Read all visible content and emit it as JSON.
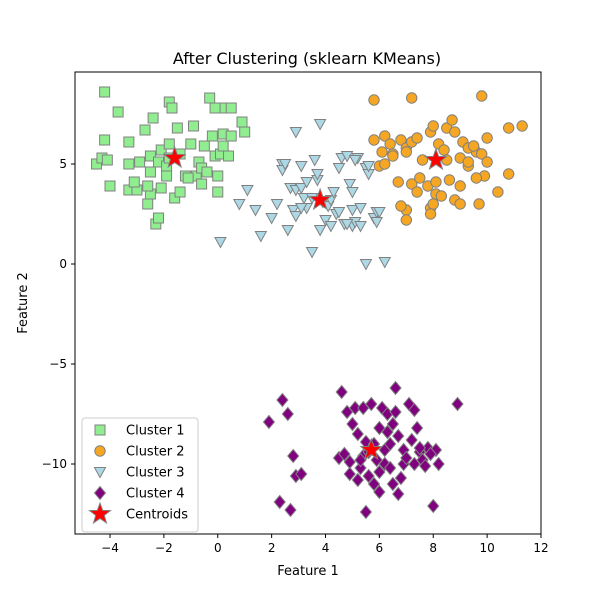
{
  "chart_data": {
    "type": "scatter",
    "title": "After Clustering (sklearn KMeans)",
    "xlabel": "Feature 1",
    "ylabel": "Feature 2",
    "xlim": [
      -5.3,
      12.0
    ],
    "ylim": [
      -13.5,
      9.6
    ],
    "xticks": [
      -4,
      -2,
      0,
      2,
      4,
      6,
      8,
      10,
      12
    ],
    "yticks": [
      -10,
      -5,
      0,
      5
    ],
    "ytick_labels": [
      "−10",
      "−5",
      "0",
      "5"
    ],
    "xtick_labels": [
      "−4",
      "−2",
      "0",
      "2",
      "4",
      "6",
      "8",
      "10",
      "12"
    ],
    "grid": false,
    "legend_position": "lower-left",
    "series": [
      {
        "name": "Cluster 1",
        "marker": "square",
        "color": "#90ee90",
        "edge": "#808080",
        "points": [
          [
            -4.2,
            8.6
          ],
          [
            -3.7,
            7.6
          ],
          [
            -4.2,
            6.2
          ],
          [
            -4.5,
            5.0
          ],
          [
            -4.3,
            5.3
          ],
          [
            -4.1,
            5.2
          ],
          [
            -4.0,
            3.9
          ],
          [
            -3.3,
            3.7
          ],
          [
            -3.0,
            3.7
          ],
          [
            -3.1,
            4.1
          ],
          [
            -3.3,
            5.0
          ],
          [
            -3.3,
            6.1
          ],
          [
            -2.9,
            5.1
          ],
          [
            -2.7,
            6.7
          ],
          [
            -2.6,
            3.0
          ],
          [
            -2.5,
            3.5
          ],
          [
            -2.6,
            3.9
          ],
          [
            -2.5,
            4.6
          ],
          [
            -2.5,
            5.4
          ],
          [
            -2.4,
            7.3
          ],
          [
            -2.3,
            2.0
          ],
          [
            -2.2,
            2.3
          ],
          [
            -2.1,
            3.8
          ],
          [
            -2.2,
            5.1
          ],
          [
            -2.1,
            5.7
          ],
          [
            -1.8,
            8.1
          ],
          [
            -1.7,
            7.8
          ],
          [
            -1.9,
            4.9
          ],
          [
            -1.8,
            5.3
          ],
          [
            -1.8,
            6.0
          ],
          [
            -1.6,
            3.3
          ],
          [
            -1.4,
            3.6
          ],
          [
            -1.5,
            6.8
          ],
          [
            -1.4,
            5.5
          ],
          [
            -1.2,
            4.4
          ],
          [
            -1.0,
            6.0
          ],
          [
            -0.9,
            6.9
          ],
          [
            -0.8,
            4.4
          ],
          [
            -0.7,
            5.1
          ],
          [
            -0.6,
            4.0
          ],
          [
            -0.6,
            4.8
          ],
          [
            -0.5,
            5.9
          ],
          [
            -0.4,
            4.6
          ],
          [
            -0.3,
            8.3
          ],
          [
            -0.2,
            6.4
          ],
          [
            -0.1,
            5.4
          ],
          [
            0.0,
            3.6
          ],
          [
            0.0,
            4.4
          ],
          [
            0.1,
            5.5
          ],
          [
            0.2,
            6.5
          ],
          [
            0.2,
            7.8
          ],
          [
            0.4,
            5.4
          ],
          [
            0.5,
            7.8
          ],
          [
            0.5,
            6.4
          ],
          [
            0.9,
            7.1
          ],
          [
            1.0,
            6.6
          ],
          [
            -0.1,
            7.8
          ],
          [
            0.2,
            5.9
          ],
          [
            -1.1,
            4.3
          ],
          [
            -1.9,
            4.4
          ]
        ]
      },
      {
        "name": "Cluster 2",
        "marker": "circle",
        "color": "#f5a623",
        "edge": "#808080",
        "points": [
          [
            5.8,
            8.2
          ],
          [
            7.2,
            8.3
          ],
          [
            9.8,
            8.4
          ],
          [
            5.8,
            6.2
          ],
          [
            6.2,
            6.4
          ],
          [
            6.4,
            6.0
          ],
          [
            6.5,
            5.5
          ],
          [
            6.8,
            6.2
          ],
          [
            7.0,
            5.8
          ],
          [
            7.2,
            6.1
          ],
          [
            7.4,
            6.3
          ],
          [
            7.6,
            5.2
          ],
          [
            7.9,
            6.6
          ],
          [
            8.0,
            6.9
          ],
          [
            8.2,
            6.0
          ],
          [
            8.4,
            5.7
          ],
          [
            8.5,
            6.8
          ],
          [
            8.7,
            7.2
          ],
          [
            8.8,
            6.6
          ],
          [
            9.0,
            5.3
          ],
          [
            9.1,
            6.1
          ],
          [
            9.3,
            4.9
          ],
          [
            9.6,
            5.6
          ],
          [
            9.8,
            5.5
          ],
          [
            9.9,
            4.4
          ],
          [
            10.0,
            6.3
          ],
          [
            10.0,
            5.1
          ],
          [
            10.4,
            3.6
          ],
          [
            10.8,
            4.5
          ],
          [
            10.8,
            6.8
          ],
          [
            11.3,
            6.9
          ],
          [
            6.0,
            4.9
          ],
          [
            6.1,
            5.6
          ],
          [
            6.2,
            5.0
          ],
          [
            6.5,
            5.4
          ],
          [
            6.7,
            4.1
          ],
          [
            7.0,
            5.6
          ],
          [
            7.2,
            4.0
          ],
          [
            7.4,
            3.6
          ],
          [
            7.5,
            4.3
          ],
          [
            7.8,
            3.9
          ],
          [
            7.9,
            2.8
          ],
          [
            8.0,
            3.0
          ],
          [
            8.1,
            3.5
          ],
          [
            8.3,
            3.4
          ],
          [
            8.5,
            5.2
          ],
          [
            8.6,
            4.2
          ],
          [
            8.8,
            3.2
          ],
          [
            9.0,
            3.0
          ],
          [
            9.0,
            3.9
          ],
          [
            9.3,
            5.8
          ],
          [
            9.5,
            5.9
          ],
          [
            9.6,
            4.3
          ],
          [
            9.7,
            3.0
          ],
          [
            7.0,
            2.7
          ],
          [
            6.8,
            2.9
          ],
          [
            7.0,
            2.2
          ],
          [
            7.9,
            2.5
          ],
          [
            8.1,
            4.1
          ],
          [
            9.3,
            5.1
          ]
        ]
      },
      {
        "name": "Cluster 3",
        "marker": "triangle-down",
        "color": "#add8e6",
        "edge": "#808080",
        "points": [
          [
            0.1,
            1.1
          ],
          [
            1.1,
            3.7
          ],
          [
            0.8,
            3.0
          ],
          [
            1.4,
            2.7
          ],
          [
            1.6,
            1.4
          ],
          [
            2.2,
            3.0
          ],
          [
            2.4,
            5.0
          ],
          [
            2.4,
            4.7
          ],
          [
            2.6,
            1.7
          ],
          [
            2.7,
            3.8
          ],
          [
            2.8,
            2.7
          ],
          [
            2.9,
            3.7
          ],
          [
            2.9,
            2.4
          ],
          [
            2.9,
            6.6
          ],
          [
            3.1,
            4.9
          ],
          [
            3.1,
            3.8
          ],
          [
            3.2,
            3.3
          ],
          [
            3.3,
            4.1
          ],
          [
            3.3,
            2.8
          ],
          [
            3.5,
            0.6
          ],
          [
            3.5,
            3.3
          ],
          [
            3.6,
            5.2
          ],
          [
            3.7,
            4.2
          ],
          [
            3.7,
            4.5
          ],
          [
            3.8,
            1.7
          ],
          [
            3.8,
            7.0
          ],
          [
            3.9,
            3.1
          ],
          [
            4.0,
            2.2
          ],
          [
            4.1,
            2.9
          ],
          [
            4.2,
            3.2
          ],
          [
            4.3,
            3.6
          ],
          [
            4.4,
            2.5
          ],
          [
            4.5,
            2.6
          ],
          [
            4.5,
            4.8
          ],
          [
            4.6,
            5.3
          ],
          [
            4.7,
            2.0
          ],
          [
            4.8,
            5.4
          ],
          [
            4.9,
            4.0
          ],
          [
            5.0,
            3.6
          ],
          [
            5.0,
            2.7
          ],
          [
            5.0,
            1.9
          ],
          [
            5.1,
            2.1
          ],
          [
            5.2,
            5.3
          ],
          [
            5.3,
            1.9
          ],
          [
            5.3,
            2.8
          ],
          [
            5.5,
            0.0
          ],
          [
            5.5,
            4.8
          ],
          [
            5.6,
            4.5
          ],
          [
            5.6,
            4.9
          ],
          [
            5.8,
            2.3
          ],
          [
            5.9,
            2.6
          ],
          [
            5.9,
            2.1
          ],
          [
            6.0,
            2.6
          ],
          [
            6.2,
            0.1
          ],
          [
            3.1,
            2.8
          ],
          [
            4.2,
            1.9
          ],
          [
            2.5,
            5.0
          ],
          [
            2.0,
            2.3
          ],
          [
            4.8,
            2.0
          ],
          [
            5.1,
            5.2
          ]
        ]
      },
      {
        "name": "Cluster 4",
        "marker": "diamond",
        "color": "#800080",
        "edge": "#808080",
        "points": [
          [
            1.9,
            -7.9
          ],
          [
            2.3,
            -11.9
          ],
          [
            2.4,
            -6.8
          ],
          [
            2.6,
            -7.5
          ],
          [
            2.7,
            -12.3
          ],
          [
            2.8,
            -9.6
          ],
          [
            2.9,
            -10.6
          ],
          [
            3.1,
            -10.5
          ],
          [
            4.5,
            -9.7
          ],
          [
            4.6,
            -6.4
          ],
          [
            4.7,
            -9.5
          ],
          [
            4.8,
            -7.4
          ],
          [
            4.9,
            -9.9
          ],
          [
            4.9,
            -10.5
          ],
          [
            5.0,
            -8.0
          ],
          [
            5.1,
            -7.2
          ],
          [
            5.2,
            -8.5
          ],
          [
            5.2,
            -10.8
          ],
          [
            5.3,
            -10.2
          ],
          [
            5.4,
            -7.2
          ],
          [
            5.4,
            -9.6
          ],
          [
            5.5,
            -8.9
          ],
          [
            5.5,
            -12.4
          ],
          [
            5.6,
            -9.4
          ],
          [
            5.6,
            -10.6
          ],
          [
            5.7,
            -7.0
          ],
          [
            5.8,
            -9.0
          ],
          [
            5.8,
            -11.0
          ],
          [
            5.9,
            -9.8
          ],
          [
            6.0,
            -8.2
          ],
          [
            6.0,
            -11.4
          ],
          [
            6.1,
            -7.2
          ],
          [
            6.2,
            -9.3
          ],
          [
            6.2,
            -10.0
          ],
          [
            6.3,
            -7.5
          ],
          [
            6.3,
            -8.4
          ],
          [
            6.4,
            -9.0
          ],
          [
            6.4,
            -10.2
          ],
          [
            6.5,
            -11.0
          ],
          [
            6.5,
            -8.0
          ],
          [
            6.6,
            -6.2
          ],
          [
            6.6,
            -7.4
          ],
          [
            6.7,
            -8.6
          ],
          [
            6.7,
            -11.5
          ],
          [
            6.8,
            -10.7
          ],
          [
            6.9,
            -9.3
          ],
          [
            6.9,
            -10.0
          ],
          [
            7.0,
            -9.7
          ],
          [
            7.1,
            -7.0
          ],
          [
            7.2,
            -8.8
          ],
          [
            7.3,
            -7.3
          ],
          [
            7.3,
            -10.0
          ],
          [
            7.4,
            -8.2
          ],
          [
            7.5,
            -9.4
          ],
          [
            7.6,
            -9.8
          ],
          [
            7.7,
            -10.1
          ],
          [
            7.8,
            -9.2
          ],
          [
            8.0,
            -12.1
          ],
          [
            8.1,
            -9.3
          ],
          [
            8.2,
            -10.0
          ],
          [
            8.9,
            -7.0
          ],
          [
            7.5,
            -9.2
          ],
          [
            7.9,
            -9.5
          ],
          [
            6.0,
            -10.4
          ],
          [
            5.3,
            -9.8
          ]
        ]
      },
      {
        "name": "Centroids",
        "marker": "star",
        "color": "#ff0000",
        "edge": "#808080",
        "points": [
          [
            -1.6,
            5.3
          ],
          [
            3.8,
            3.2
          ],
          [
            8.1,
            5.2
          ],
          [
            5.7,
            -9.3
          ]
        ]
      }
    ]
  }
}
